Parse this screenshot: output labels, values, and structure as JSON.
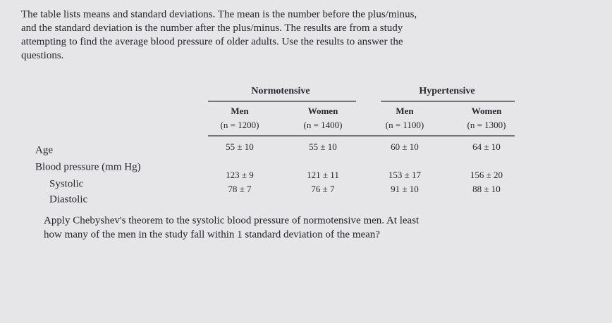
{
  "intro": [
    "The table lists means and standard deviations. The mean is the number before the plus/minus,",
    "and the standard deviation is the number after the plus/minus. The results are from a study",
    "attempting to find the average blood pressure of older adults. Use the results to answer the",
    "questions."
  ],
  "table": {
    "groups": [
      "Normotensive",
      "Hypertensive"
    ],
    "columns": [
      {
        "name": "Men",
        "n": "(n = 1200)"
      },
      {
        "name": "Women",
        "n": "(n = 1400)"
      },
      {
        "name": "Men",
        "n": "(n = 1100)"
      },
      {
        "name": "Women",
        "n": "(n = 1300)"
      }
    ],
    "rows": [
      {
        "label": "Age",
        "cells": [
          "55 ± 10",
          "55 ± 10",
          "60 ± 10",
          "64 ± 10"
        ]
      },
      {
        "label": "Blood pressure (mm Hg)"
      },
      {
        "label": "Systolic",
        "cells": [
          "123 ± 9",
          "121 ± 11",
          "153 ± 17",
          "156 ± 20"
        ]
      },
      {
        "label": "Diastolic",
        "cells": [
          "78 ± 7",
          "76 ± 7",
          "91 ± 10",
          "88 ± 10"
        ]
      }
    ]
  },
  "question": [
    "Apply Chebyshev's theorem to the systolic blood pressure of normotensive men. At least",
    "how many of the men in the study fall within 1 standard deviation of the mean?"
  ]
}
